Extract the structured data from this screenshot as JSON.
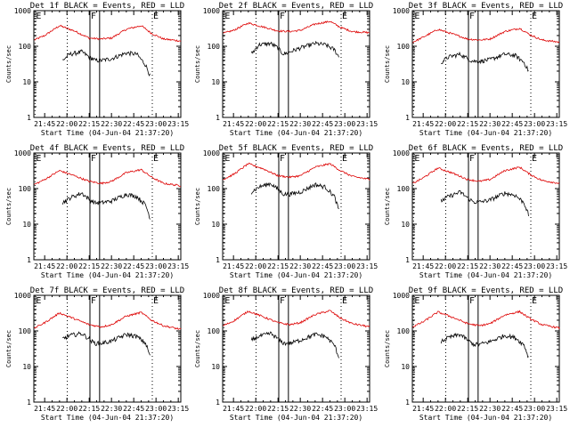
{
  "chart_data": {
    "type": "line",
    "yscale": "log",
    "ylim": [
      1,
      1000
    ],
    "xlim_min": [
      -7.3,
      91.7
    ],
    "ylabel": "Counts/sec",
    "y_ticks": [
      1,
      10,
      100,
      1000
    ],
    "y_tick_labels": [
      "1",
      "10",
      "100",
      "1000"
    ],
    "x_ticks_min": [
      0,
      15,
      30,
      45,
      60,
      75,
      90
    ],
    "x_tick_labels": [
      "21:45",
      "22:00",
      "22:15",
      "22:30",
      "22:45",
      "23:00",
      "23:15"
    ],
    "xlabel": "Start Time (04-Jun-04 21:37:20)",
    "legend_note": "BLACK = Events, RED = LLD",
    "markers": [
      {
        "label": "E",
        "t": -6.5,
        "style": "dotted"
      },
      {
        "label": "",
        "t": 15.2,
        "style": "dotted"
      },
      {
        "label": "F",
        "t": 30.5,
        "style": "solid"
      },
      {
        "label": "",
        "t": 37.0,
        "style": "solid"
      },
      {
        "label": "E",
        "t": 72.5,
        "style": "dotted"
      }
    ],
    "series_colors": {
      "events": "#000000",
      "lld": "#dd0000"
    },
    "panels": [
      {
        "title": "Det 1f BLACK = Events, RED = LLD",
        "series": [
          {
            "name": "LLD",
            "t": [
              -7,
              0,
              10,
              20,
              30,
              38,
              45,
              55,
              65,
              72,
              80,
              92
            ],
            "values": [
              150,
              200,
              380,
              270,
              170,
              160,
              170,
              300,
              380,
              230,
              160,
              140
            ]
          },
          {
            "name": "Events",
            "t": [
              12,
              17,
              25,
              30,
              32,
              34,
              38,
              45,
              55,
              62,
              68,
              71
            ],
            "values": [
              40,
              60,
              70,
              50,
              45,
              40,
              40,
              45,
              65,
              60,
              30,
              15
            ]
          }
        ]
      },
      {
        "title": "Det 2f BLACK = Events, RED = LLD",
        "series": [
          {
            "name": "LLD",
            "t": [
              -7,
              0,
              10,
              20,
              30,
              38,
              45,
              55,
              65,
              72,
              80,
              92
            ],
            "values": [
              230,
              280,
              450,
              350,
              270,
              260,
              280,
              420,
              500,
              340,
              260,
              240
            ]
          },
          {
            "name": "Events",
            "t": [
              12,
              17,
              25,
              30,
              32,
              34,
              38,
              45,
              55,
              62,
              68,
              71
            ],
            "values": [
              60,
              110,
              120,
              90,
              70,
              60,
              70,
              90,
              120,
              110,
              80,
              50
            ]
          }
        ]
      },
      {
        "title": "Det 3f BLACK = Events, RED = LLD",
        "series": [
          {
            "name": "LLD",
            "t": [
              -7,
              0,
              10,
              20,
              30,
              38,
              45,
              55,
              65,
              72,
              80,
              92
            ],
            "values": [
              130,
              180,
              300,
              220,
              160,
              150,
              160,
              260,
              320,
              210,
              150,
              130
            ]
          },
          {
            "name": "Events",
            "t": [
              12,
              17,
              25,
              30,
              32,
              34,
              38,
              45,
              55,
              62,
              68,
              71
            ],
            "values": [
              35,
              50,
              60,
              45,
              40,
              38,
              38,
              42,
              60,
              55,
              35,
              20
            ]
          }
        ]
      },
      {
        "title": "Det 4f BLACK = Events, RED = LLD",
        "series": [
          {
            "name": "LLD",
            "t": [
              -7,
              0,
              10,
              20,
              30,
              38,
              45,
              55,
              65,
              72,
              80,
              92
            ],
            "values": [
              130,
              180,
              320,
              230,
              160,
              140,
              160,
              280,
              340,
              210,
              140,
              120
            ]
          },
          {
            "name": "Events",
            "t": [
              12,
              17,
              25,
              30,
              32,
              34,
              38,
              45,
              55,
              62,
              68,
              71
            ],
            "values": [
              40,
              55,
              75,
              50,
              45,
              40,
              40,
              45,
              70,
              60,
              35,
              15
            ]
          }
        ]
      },
      {
        "title": "Det 5f BLACK = Events, RED = LLD",
        "series": [
          {
            "name": "LLD",
            "t": [
              -7,
              0,
              10,
              20,
              30,
              38,
              45,
              55,
              65,
              72,
              80,
              92
            ],
            "values": [
              180,
              250,
              500,
              360,
              230,
              210,
              230,
              400,
              500,
              320,
              220,
              180
            ]
          },
          {
            "name": "Events",
            "t": [
              12,
              17,
              25,
              30,
              32,
              34,
              38,
              45,
              55,
              62,
              68,
              71
            ],
            "values": [
              80,
              110,
              140,
              95,
              80,
              70,
              70,
              80,
              130,
              110,
              60,
              25
            ]
          }
        ]
      },
      {
        "title": "Det 6f BLACK = Events, RED = LLD",
        "series": [
          {
            "name": "LLD",
            "t": [
              -7,
              0,
              10,
              20,
              30,
              38,
              45,
              55,
              65,
              72,
              80,
              92
            ],
            "values": [
              140,
              200,
              380,
              270,
              180,
              160,
              180,
              320,
              400,
              250,
              170,
              140
            ]
          },
          {
            "name": "Events",
            "t": [
              12,
              17,
              25,
              30,
              32,
              34,
              38,
              45,
              55,
              62,
              68,
              71
            ],
            "values": [
              45,
              60,
              80,
              55,
              48,
              42,
              42,
              48,
              75,
              65,
              40,
              18
            ]
          }
        ]
      },
      {
        "title": "Det 7f BLACK = Events, RED = LLD",
        "series": [
          {
            "name": "LLD",
            "t": [
              -7,
              0,
              10,
              20,
              30,
              38,
              45,
              55,
              65,
              72,
              80,
              92
            ],
            "values": [
              120,
              170,
              320,
              220,
              150,
              130,
              150,
              260,
              330,
              200,
              140,
              110
            ]
          },
          {
            "name": "Events",
            "t": [
              12,
              17,
              25,
              30,
              32,
              34,
              38,
              45,
              55,
              62,
              68,
              71
            ],
            "values": [
              60,
              75,
              85,
              60,
              50,
              45,
              45,
              52,
              80,
              70,
              45,
              20
            ]
          }
        ]
      },
      {
        "title": "Det 8f BLACK = Events, RED = LLD",
        "series": [
          {
            "name": "LLD",
            "t": [
              -7,
              0,
              10,
              20,
              30,
              38,
              45,
              55,
              65,
              72,
              80,
              92
            ],
            "values": [
              140,
              190,
              360,
              250,
              170,
              150,
              170,
              290,
              370,
              230,
              160,
              130
            ]
          },
          {
            "name": "Events",
            "t": [
              12,
              17,
              25,
              30,
              32,
              34,
              38,
              45,
              55,
              62,
              68,
              71
            ],
            "values": [
              55,
              70,
              85,
              60,
              50,
              45,
              45,
              55,
              80,
              70,
              40,
              18
            ]
          }
        ]
      },
      {
        "title": "Det 9f BLACK = Events, RED = LLD",
        "series": [
          {
            "name": "LLD",
            "t": [
              -7,
              0,
              10,
              20,
              30,
              38,
              45,
              55,
              65,
              72,
              80,
              92
            ],
            "values": [
              130,
              180,
              340,
              240,
              160,
              140,
              160,
              280,
              350,
              220,
              150,
              120
            ]
          },
          {
            "name": "Events",
            "t": [
              12,
              17,
              25,
              30,
              32,
              34,
              38,
              45,
              55,
              62,
              68,
              71
            ],
            "values": [
              50,
              65,
              80,
              55,
              48,
              42,
              42,
              50,
              75,
              65,
              40,
              18
            ]
          }
        ]
      }
    ]
  }
}
